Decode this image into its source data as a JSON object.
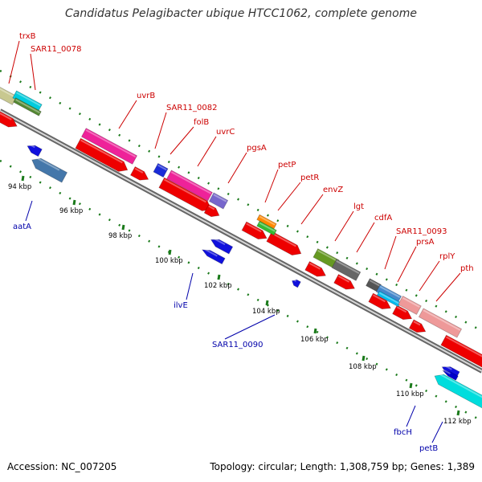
{
  "title": "Candidatus Pelagibacter ubique HTCC1062, complete genome",
  "footer": {
    "accession": "Accession: NC_007205",
    "topology": "Topology: circular; Length: 1,308,759 bp; Genes: 1,389"
  },
  "colors": {
    "backbone_dark": "#555555",
    "backbone_light": "#bbbbbb",
    "tick": "#1a7a1a",
    "forward_label": "#cc0000",
    "reverse_label": "#0000aa",
    "forward_gene": "#ee0000",
    "reverse_gene": "#1010dd"
  },
  "kbp_ticks": [
    "94 kbp",
    "96 kbp",
    "98 kbp",
    "100 kbp",
    "102 kbp",
    "104 kbp",
    "106 kbp",
    "108 kbp",
    "110 kbp",
    "112 kbp"
  ],
  "forward_labels": [
    "trxB",
    "SAR11_0078",
    "uvrB",
    "SAR11_0082",
    "folB",
    "uvrC",
    "pgsA",
    "petP",
    "petR",
    "envZ",
    "lgt",
    "cdfA",
    "SAR11_0093",
    "prsA",
    "rplY",
    "pth"
  ],
  "reverse_labels": [
    "aatA",
    "ilvE",
    "SAR11_0090",
    "fbcH",
    "petB"
  ]
}
